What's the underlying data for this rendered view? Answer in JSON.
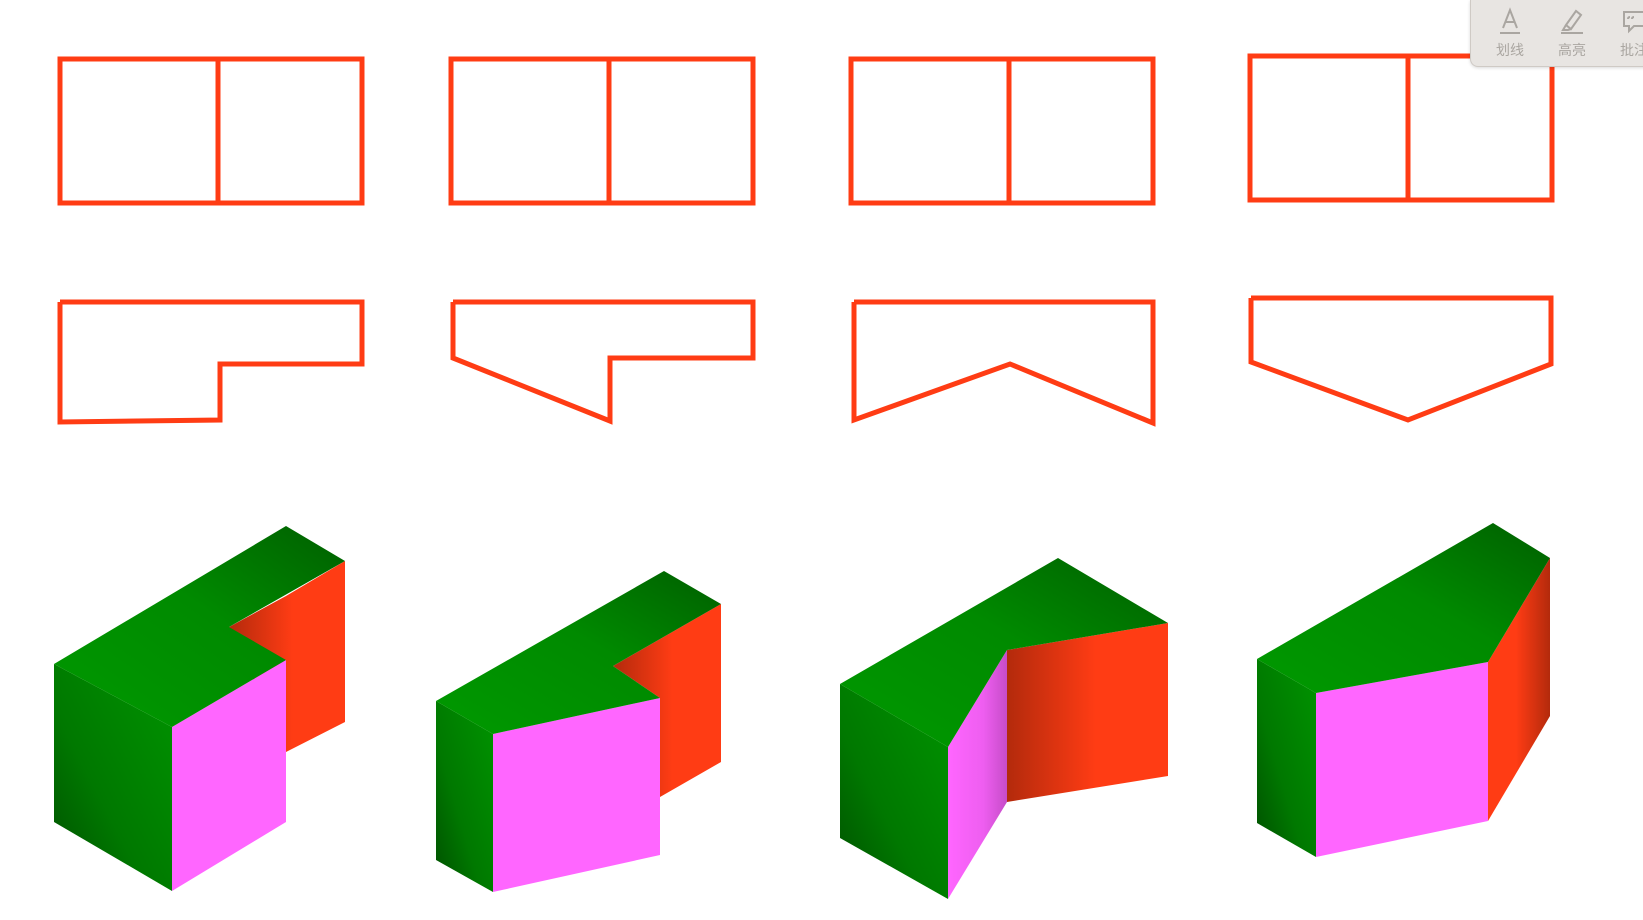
{
  "toolbar": {
    "tools": [
      {
        "label": "划线",
        "icon": "underline-a-icon"
      },
      {
        "label": "高亮",
        "icon": "highlighter-icon"
      },
      {
        "label": "批注",
        "icon": "comment-icon"
      }
    ]
  },
  "colors": {
    "outline": "#ff3c14",
    "top_light": "#009900",
    "top_dark": "#006400",
    "front_pink": "#ff66ff",
    "side_orange": "#ff3c14",
    "side_dark": "#b82a0c",
    "toolbar_bg": "#e8e5e2",
    "toolbar_text": "#aaa6a1"
  }
}
